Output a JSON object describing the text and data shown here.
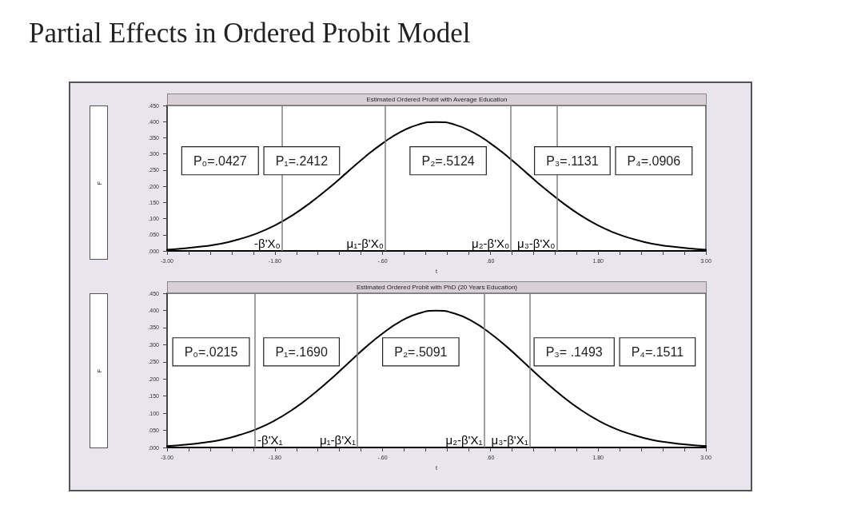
{
  "chart_data": [
    {
      "type": "line",
      "title": "Partial Effects in Ordered Probit Model",
      "subtitle": "Estimated Ordered Probit with Average Education",
      "xlabel": "t",
      "ylabel": "F",
      "x": [
        -3,
        -2.8,
        -2.6,
        -2.4,
        -2.2,
        -2,
        -1.8,
        -1.6,
        -1.4,
        -1.2,
        -1,
        -0.8,
        -0.6,
        -0.4,
        -0.2,
        0,
        0.2,
        0.4,
        0.6,
        0.8,
        1,
        1.2,
        1.4,
        1.6,
        1.8,
        2,
        2.2,
        2.4,
        2.6,
        2.8,
        3
      ],
      "series": [
        {
          "color": "#000000",
          "values": [
            0.004,
            0.008,
            0.014,
            0.022,
            0.036,
            0.054,
            0.079,
            0.111,
            0.15,
            0.194,
            0.242,
            0.29,
            0.333,
            0.368,
            0.391,
            0.399,
            0.391,
            0.368,
            0.333,
            0.29,
            0.242,
            0.194,
            0.15,
            0.111,
            0.079,
            0.054,
            0.036,
            0.022,
            0.014,
            0.008,
            0.004
          ]
        }
      ],
      "xlim": [
        -3,
        3
      ],
      "ylim": [
        0,
        0.45
      ],
      "xticks": [
        {
          "value": -3,
          "label": "-3.00"
        },
        {
          "value": -2.76,
          "label": null
        },
        {
          "value": -2.52,
          "label": null
        },
        {
          "value": -2.28,
          "label": null
        },
        {
          "value": -2.04,
          "label": null
        },
        {
          "value": -1.8,
          "label": "-1.80"
        },
        {
          "value": -1.56,
          "label": null
        },
        {
          "value": -1.32,
          "label": null
        },
        {
          "value": -1.08,
          "label": null
        },
        {
          "value": -0.84,
          "label": null
        },
        {
          "value": -0.6,
          "label": "-.60"
        },
        {
          "value": -0.36,
          "label": null
        },
        {
          "value": -0.12,
          "label": null
        },
        {
          "value": 0.12,
          "label": null
        },
        {
          "value": 0.36,
          "label": null
        },
        {
          "value": 0.6,
          "label": ".60"
        },
        {
          "value": 0.84,
          "label": null
        },
        {
          "value": 1.08,
          "label": null
        },
        {
          "value": 1.32,
          "label": null
        },
        {
          "value": 1.56,
          "label": null
        },
        {
          "value": 1.8,
          "label": "1.80"
        },
        {
          "value": 2.04,
          "label": null
        },
        {
          "value": 2.28,
          "label": null
        },
        {
          "value": 2.52,
          "label": null
        },
        {
          "value": 2.76,
          "label": null
        },
        {
          "value": 3,
          "label": "3.00"
        }
      ],
      "yticks": [
        {
          "value": 0,
          "label": ".000"
        },
        {
          "value": 0.05,
          "label": ".050"
        },
        {
          "value": 0.1,
          "label": ".100"
        },
        {
          "value": 0.15,
          "label": ".150"
        },
        {
          "value": 0.2,
          "label": ".200"
        },
        {
          "value": 0.25,
          "label": ".250"
        },
        {
          "value": 0.3,
          "label": ".300"
        },
        {
          "value": 0.35,
          "label": ".350"
        },
        {
          "value": 0.4,
          "label": ".400"
        },
        {
          "value": 0.45,
          "label": ".450"
        }
      ],
      "ref_lines": [
        {
          "axis": "x",
          "value": -1.72,
          "label": "-β'X₀",
          "color": "#808080"
        },
        {
          "axis": "x",
          "value": -0.57,
          "label": "μ₁-β'X₀",
          "color": "#808080"
        },
        {
          "axis": "x",
          "value": 0.83,
          "label": "μ₂-β'X₀",
          "color": "#808080"
        },
        {
          "axis": "x",
          "value": 1.34,
          "label": "μ₃-β'X₀",
          "color": "#808080"
        }
      ],
      "annotations": [
        "P₀=.0427",
        "P₁=.2412",
        "P₂=.5124",
        "P₃=.1131",
        "P₄=.0906"
      ],
      "marker": "none",
      "line_style": "solid"
    },
    {
      "type": "line",
      "subtitle": "Estimated Ordered Probit with PhD (20 Years Education)",
      "xlabel": "t",
      "ylabel": "F",
      "x": [
        -3,
        -2.8,
        -2.6,
        -2.4,
        -2.2,
        -2,
        -1.8,
        -1.6,
        -1.4,
        -1.2,
        -1,
        -0.8,
        -0.6,
        -0.4,
        -0.2,
        0,
        0.2,
        0.4,
        0.6,
        0.8,
        1,
        1.2,
        1.4,
        1.6,
        1.8,
        2,
        2.2,
        2.4,
        2.6,
        2.8,
        3
      ],
      "series": [
        {
          "color": "#000000",
          "values": [
            0.004,
            0.008,
            0.014,
            0.022,
            0.036,
            0.054,
            0.079,
            0.111,
            0.15,
            0.194,
            0.242,
            0.29,
            0.333,
            0.368,
            0.391,
            0.399,
            0.391,
            0.368,
            0.333,
            0.29,
            0.242,
            0.194,
            0.15,
            0.111,
            0.079,
            0.054,
            0.036,
            0.022,
            0.014,
            0.008,
            0.004
          ]
        }
      ],
      "xlim": [
        -3,
        3
      ],
      "ylim": [
        0,
        0.45
      ],
      "xticks": [
        {
          "value": -3,
          "label": "-3.00"
        },
        {
          "value": -2.76,
          "label": null
        },
        {
          "value": -2.52,
          "label": null
        },
        {
          "value": -2.28,
          "label": null
        },
        {
          "value": -2.04,
          "label": null
        },
        {
          "value": -1.8,
          "label": "-1.80"
        },
        {
          "value": -1.56,
          "label": null
        },
        {
          "value": -1.32,
          "label": null
        },
        {
          "value": -1.08,
          "label": null
        },
        {
          "value": -0.84,
          "label": null
        },
        {
          "value": -0.6,
          "label": "-.60"
        },
        {
          "value": -0.36,
          "label": null
        },
        {
          "value": -0.12,
          "label": null
        },
        {
          "value": 0.12,
          "label": null
        },
        {
          "value": 0.36,
          "label": null
        },
        {
          "value": 0.6,
          "label": ".60"
        },
        {
          "value": 0.84,
          "label": null
        },
        {
          "value": 1.08,
          "label": null
        },
        {
          "value": 1.32,
          "label": null
        },
        {
          "value": 1.56,
          "label": null
        },
        {
          "value": 1.8,
          "label": "1.80"
        },
        {
          "value": 2.04,
          "label": null
        },
        {
          "value": 2.28,
          "label": null
        },
        {
          "value": 2.52,
          "label": null
        },
        {
          "value": 2.76,
          "label": null
        },
        {
          "value": 3,
          "label": "3.00"
        }
      ],
      "yticks": [
        {
          "value": 0,
          "label": ".000"
        },
        {
          "value": 0.05,
          "label": ".050"
        },
        {
          "value": 0.1,
          "label": ".100"
        },
        {
          "value": 0.15,
          "label": ".150"
        },
        {
          "value": 0.2,
          "label": ".200"
        },
        {
          "value": 0.25,
          "label": ".250"
        },
        {
          "value": 0.3,
          "label": ".300"
        },
        {
          "value": 0.35,
          "label": ".350"
        },
        {
          "value": 0.4,
          "label": ".400"
        },
        {
          "value": 0.45,
          "label": ".450"
        }
      ],
      "ref_lines": [
        {
          "axis": "x",
          "value": -2.02,
          "label": "-β'X₁",
          "color": "#808080"
        },
        {
          "axis": "x",
          "value": -0.88,
          "label": "μ₁-β'X₁",
          "color": "#808080"
        },
        {
          "axis": "x",
          "value": 0.53,
          "label": "μ₂-β'X₁",
          "color": "#808080"
        },
        {
          "axis": "x",
          "value": 1.04,
          "label": "μ₃-β'X₁",
          "color": "#808080"
        }
      ],
      "annotations": [
        "P₀=.0215",
        "P₁=.1690",
        "P₂=.5091",
        "P₃= .1493",
        "P₄=.1511"
      ],
      "marker": "none",
      "line_style": "solid"
    }
  ]
}
